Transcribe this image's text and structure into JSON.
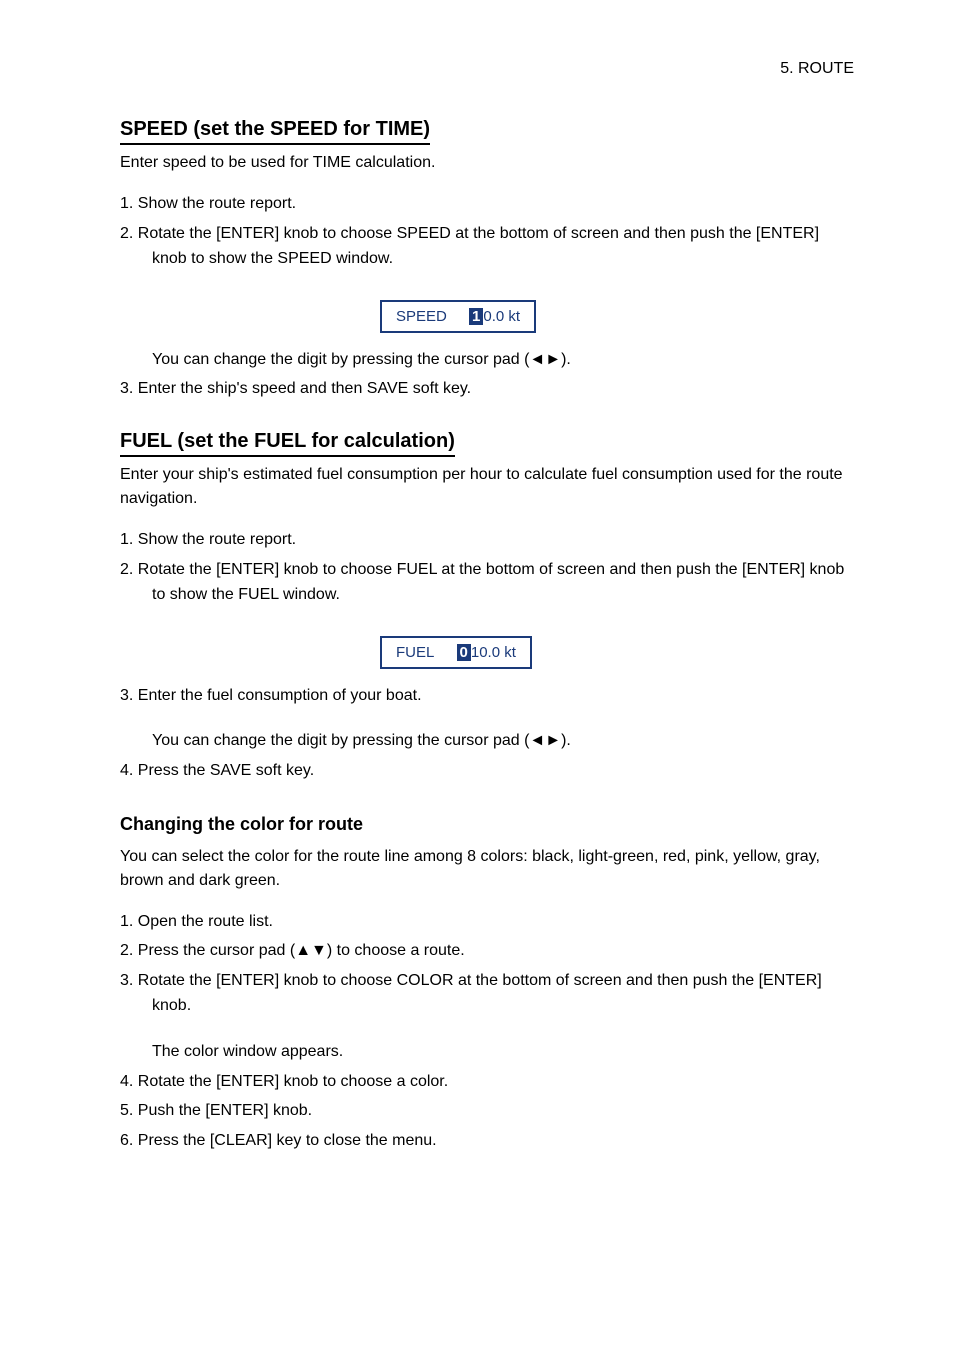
{
  "header": {
    "chapter": "5. ROUTE"
  },
  "section1": {
    "title": "SPEED (set the SPEED for TIME)",
    "intro": "Enter speed to be used for TIME calculation.",
    "items": {
      "i1": "1.   Show the route report.",
      "i2": "2.   Rotate the [ENTER] knob to choose SPEED at the bottom of screen and then push the [ENTER] knob to show the SPEED window.",
      "i3_sub": "You can change the digit by pressing the cursor pad (◄►).",
      "i3": "3.   Enter the ship's speed and then SAVE soft key."
    },
    "box": {
      "label": "SPEED",
      "hl": "1",
      "rest": "0.0   kt"
    }
  },
  "section2": {
    "title": "FUEL (set the FUEL for calculation)",
    "intro": "Enter your ship's estimated fuel consumption per hour to calculate fuel consumption used for the route navigation.",
    "items": {
      "i1": "1.   Show the route report.",
      "i2": "2.   Rotate the [ENTER] knob to choose FUEL at the bottom of screen and then push the [ENTER] knob to show the FUEL window.",
      "i3": "3.   Enter the fuel consumption of your boat.",
      "i3_sub": "You can change the digit by pressing the cursor pad (◄►).",
      "i4": "4.   Press the SAVE soft key."
    },
    "box": {
      "label": "FUEL",
      "hl": "0",
      "rest": "10.0   kt"
    }
  },
  "section3": {
    "title": "Changing the color for route",
    "intro": "You can select the color for the route line among 8 colors: black, light-green, red, pink, yellow, gray, brown and dark green.",
    "items": {
      "i1": "1.   Open the route list.",
      "i2": "2.   Press the cursor pad (▲▼) to choose a route.",
      "i3": "3.   Rotate the [ENTER] knob to choose COLOR at the bottom of screen and then push the [ENTER] knob.",
      "i3_sub": "The color window appears.",
      "i4": "4.   Rotate the [ENTER] knob to choose a color.",
      "i5": "5.   Push the [ENTER] knob.",
      "i6": "6.   Press the [CLEAR] key to close the menu."
    }
  }
}
